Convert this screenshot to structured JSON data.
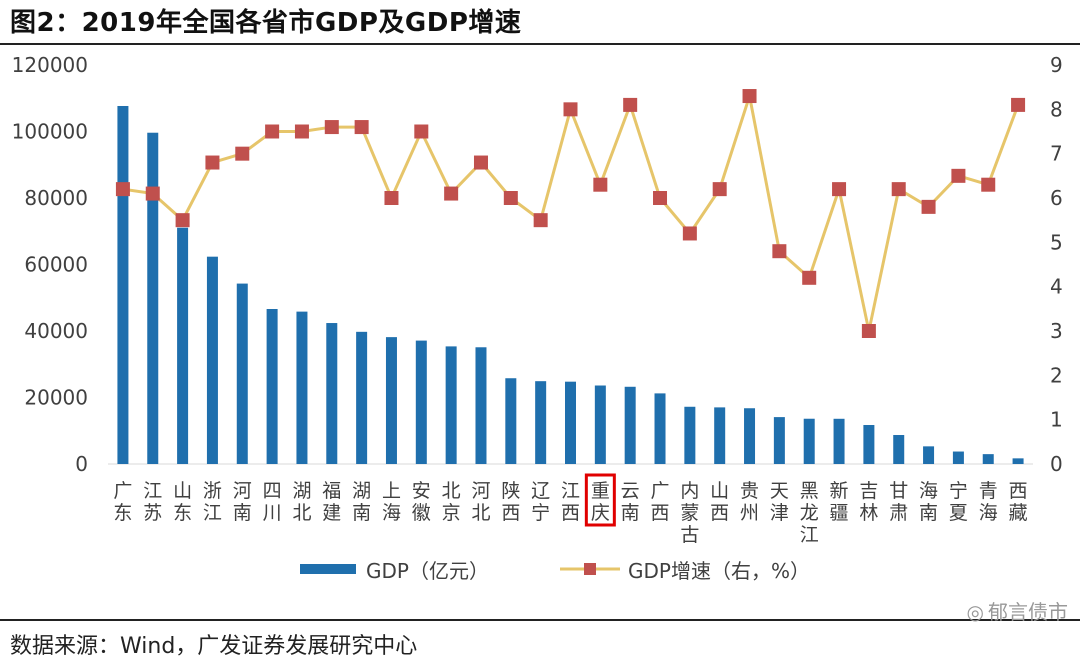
{
  "title": "图2：2019年全国各省市GDP及GDP增速",
  "source": "数据来源：Wind，广发证券发展研究中心",
  "watermark": "郁言债市",
  "colors": {
    "bar": "#1f6fad",
    "line": "#e6c56a",
    "marker": "#c0504d",
    "highlight": "#e00000"
  },
  "chart_data": {
    "type": "bar+line",
    "title": "2019年全国各省市GDP及GDP增速",
    "categories": [
      "广东",
      "江苏",
      "山东",
      "浙江",
      "河南",
      "四川",
      "湖北",
      "福建",
      "湖南",
      "上海",
      "安徽",
      "北京",
      "河北",
      "陕西",
      "辽宁",
      "江西",
      "重庆",
      "云南",
      "广西",
      "内蒙古",
      "山西",
      "贵州",
      "天津",
      "黑龙江",
      "新疆",
      "吉林",
      "甘肃",
      "海南",
      "宁夏",
      "青海",
      "西藏"
    ],
    "highlight_category": "重庆",
    "series": [
      {
        "name": "GDP（亿元）",
        "type": "bar",
        "axis": "left",
        "values": [
          107671,
          99632,
          71067,
          62352,
          54259,
          46616,
          45828,
          42395,
          39752,
          38155,
          37114,
          35371,
          35105,
          25793,
          24909,
          24758,
          23606,
          23224,
          21237,
          17213,
          17027,
          16769,
          14104,
          13613,
          13597,
          11727,
          8718,
          5309,
          3748,
          2966,
          1698
        ]
      },
      {
        "name": "GDP增速（右，%）",
        "type": "line",
        "axis": "right",
        "values": [
          6.2,
          6.1,
          5.5,
          6.8,
          7.0,
          7.5,
          7.5,
          7.6,
          7.6,
          6.0,
          7.5,
          6.1,
          6.8,
          6.0,
          5.5,
          8.0,
          6.3,
          8.1,
          6.0,
          5.2,
          6.2,
          8.3,
          4.8,
          4.2,
          6.2,
          3.0,
          6.2,
          5.8,
          6.5,
          6.3,
          8.1
        ]
      }
    ],
    "y_left": {
      "min": 0,
      "max": 120000,
      "ticks": [
        "0",
        "20000",
        "40000",
        "60000",
        "80000",
        "100000",
        "120000"
      ]
    },
    "y_right": {
      "min": 0,
      "max": 9,
      "ticks": [
        "0",
        "1",
        "2",
        "3",
        "4",
        "5",
        "6",
        "7",
        "8",
        "9"
      ]
    },
    "legend": {
      "position": "bottom",
      "items": [
        "GDP（亿元）",
        "GDP增速（右，%）"
      ]
    },
    "grid": false
  }
}
